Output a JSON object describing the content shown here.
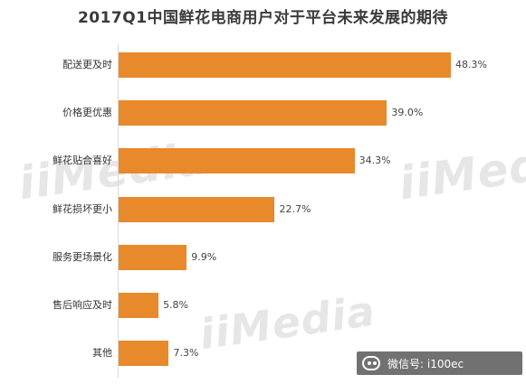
{
  "chart_data": {
    "type": "bar",
    "orientation": "horizontal",
    "title": "2017Q1中国鲜花电商用户对于平台未来发展的期待",
    "categories": [
      "配送更及时",
      "价格更优惠",
      "鲜花贴合喜好",
      "鲜花损坏更小",
      "服务更场景化",
      "售后响应及时",
      "其他"
    ],
    "values": [
      48.3,
      39.0,
      34.3,
      22.7,
      9.9,
      5.8,
      7.3
    ],
    "value_labels": [
      "48.3%",
      "39.0%",
      "34.3%",
      "22.7%",
      "9.9%",
      "5.8%",
      "7.3%"
    ],
    "xlim": [
      0,
      48.3
    ],
    "grid": false,
    "bar_color": "#e8892b"
  },
  "watermarks": [
    "iiMedia",
    "iiMedia",
    "iiMedia"
  ],
  "footer": {
    "icon": "wechat-icon",
    "text": "微信号: i100ec"
  }
}
